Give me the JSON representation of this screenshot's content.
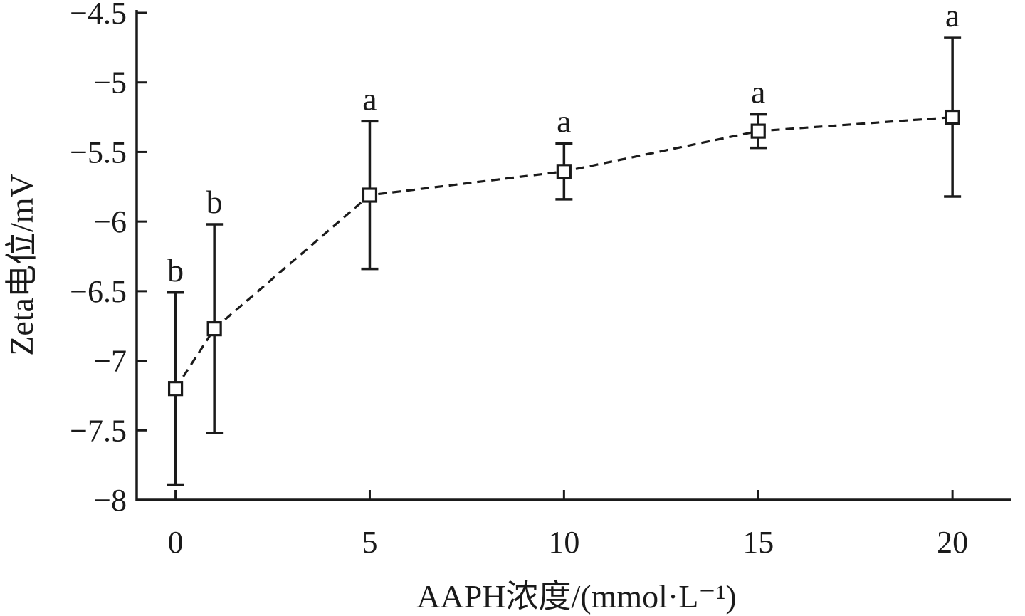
{
  "chart_data": {
    "type": "line",
    "xlabel": "AAPH浓度/(mmol·L⁻¹)",
    "ylabel": "Zeta电位/mV",
    "xlim": [
      -1,
      21.5
    ],
    "ylim": [
      -8,
      -4.5
    ],
    "x_ticks": [
      0,
      5,
      10,
      15,
      20
    ],
    "x_tick_labels": [
      "0",
      "5",
      "10",
      "15",
      "20"
    ],
    "y_ticks": [
      -8,
      -7.5,
      -7,
      -6.5,
      -6,
      -5.5,
      -5,
      -4.5
    ],
    "y_tick_labels": [
      "−8",
      "−7.5",
      "−7",
      "−6.5",
      "−6",
      "−5.5",
      "−5",
      "−4.5"
    ],
    "grid": false,
    "legend": false,
    "line_style": "dashed",
    "marker": "open-square",
    "color": "#1a1a1a",
    "series": [
      {
        "x": [
          0,
          1,
          5,
          10,
          15,
          20
        ],
        "y": [
          -7.2,
          -6.77,
          -5.81,
          -5.64,
          -5.35,
          -5.25
        ],
        "error": [
          0.69,
          0.75,
          0.53,
          0.2,
          0.12,
          0.57
        ],
        "significance": [
          "b",
          "b",
          "a",
          "a",
          "a",
          "a"
        ]
      }
    ]
  }
}
